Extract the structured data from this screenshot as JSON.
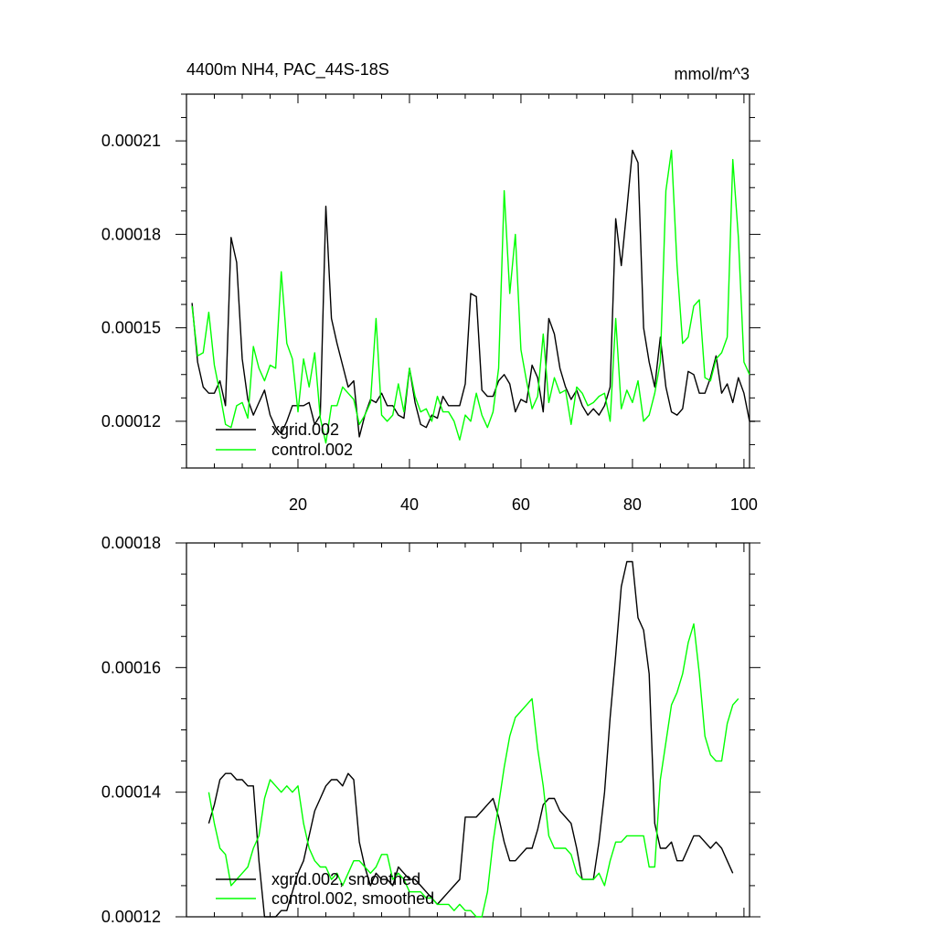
{
  "title_left": "4400m NH4, PAC_44S-18S",
  "title_right": "mmol/m^3",
  "colors": {
    "xgrid": "#000000",
    "control": "#00ff00",
    "axis": "#000000",
    "background": "#ffffff"
  },
  "chart_data": [
    {
      "type": "line",
      "title": "4400m NH4, PAC_44S-18S",
      "units": "mmol/m^3",
      "xlim": [
        0,
        101
      ],
      "ylim": [
        0.000105,
        0.000225
      ],
      "x_ticks": [
        20,
        40,
        60,
        80,
        100
      ],
      "x_tick_labels": [
        "20",
        "40",
        "60",
        "80",
        "100"
      ],
      "y_ticks": [
        0.00012,
        0.00015,
        0.00018,
        0.00021
      ],
      "y_tick_labels": [
        "0.00012",
        "0.00015",
        "0.00018",
        "0.00021"
      ],
      "legend": "bottom-left",
      "x_start": 1,
      "series": [
        {
          "name": "xgrid.002",
          "color": "#000000",
          "values": [
            0.000158,
            0.000139,
            0.000131,
            0.000129,
            0.000129,
            0.000133,
            0.000125,
            0.000179,
            0.000171,
            0.00014,
            0.000127,
            0.000122,
            0.000126,
            0.00013,
            0.000122,
            0.000118,
            0.000116,
            0.00012,
            0.000125,
            0.000125,
            0.000125,
            0.000126,
            0.000119,
            0.000122,
            0.000189,
            0.000153,
            0.000145,
            0.000138,
            0.000131,
            0.000133,
            0.000115,
            0.000122,
            0.000127,
            0.000126,
            0.000129,
            0.000125,
            0.000125,
            0.000122,
            0.000121,
            0.000137,
            0.000126,
            0.000119,
            0.000118,
            0.000122,
            0.000121,
            0.000128,
            0.000125,
            0.000125,
            0.000125,
            0.000132,
            0.000161,
            0.00016,
            0.00013,
            0.000128,
            0.000128,
            0.000133,
            0.000135,
            0.000132,
            0.000123,
            0.000127,
            0.000126,
            0.000138,
            0.000134,
            0.000123,
            0.000153,
            0.000148,
            0.000137,
            0.000131,
            0.000127,
            0.00013,
            0.000125,
            0.000122,
            0.000124,
            0.000122,
            0.000125,
            0.000131,
            0.000185,
            0.00017,
            0.000188,
            0.000207,
            0.000203,
            0.00015,
            0.000139,
            0.000131,
            0.000147,
            0.000131,
            0.000123,
            0.000122,
            0.000124,
            0.000136,
            0.000135,
            0.000129,
            0.000129,
            0.000134,
            0.000141,
            0.000129,
            0.000132,
            0.000126,
            0.000134,
            0.000129,
            0.00012,
            0.00012
          ]
        },
        {
          "name": "control.002",
          "color": "#00ff00",
          "values": [
            0.000157,
            0.000141,
            0.000142,
            0.000155,
            0.000138,
            0.000129,
            0.000119,
            0.000118,
            0.000125,
            0.000126,
            0.000121,
            0.000144,
            0.000137,
            0.000133,
            0.000138,
            0.000137,
            0.000168,
            0.000145,
            0.00014,
            0.000123,
            0.00014,
            0.000131,
            0.000142,
            0.000121,
            0.000113,
            0.000125,
            0.000125,
            0.000131,
            0.000129,
            0.000127,
            0.000119,
            0.000122,
            0.000126,
            0.000153,
            0.000122,
            0.00012,
            0.000122,
            0.000132,
            0.000123,
            0.000137,
            0.000128,
            0.000123,
            0.000124,
            0.00012,
            0.000128,
            0.000123,
            0.000123,
            0.00012,
            0.000114,
            0.000122,
            0.00012,
            0.000129,
            0.000122,
            0.000118,
            0.000123,
            0.000137,
            0.000194,
            0.000161,
            0.00018,
            0.000143,
            0.000133,
            0.000124,
            0.000128,
            0.000148,
            0.000126,
            0.000134,
            0.000129,
            0.00013,
            0.000119,
            0.000131,
            0.000129,
            0.000125,
            0.000126,
            0.000128,
            0.000129,
            0.00012,
            0.000153,
            0.000124,
            0.00013,
            0.000126,
            0.000133,
            0.00012,
            0.000122,
            0.000129,
            0.000139,
            0.000194,
            0.000207,
            0.00017,
            0.000145,
            0.000147,
            0.000157,
            0.000159,
            0.000134,
            0.000133,
            0.00014,
            0.000142,
            0.000147,
            0.000204,
            0.000179,
            0.000139,
            0.000135
          ]
        }
      ]
    },
    {
      "type": "line",
      "xlim": [
        0,
        101
      ],
      "ylim": [
        0.00012,
        0.00018
      ],
      "x_ticks": [
        20,
        40,
        60,
        80,
        100
      ],
      "x_tick_labels": [],
      "y_ticks": [
        0.00012,
        0.00014,
        0.00016,
        0.00018
      ],
      "y_tick_labels": [
        "0.00012",
        "0.00014",
        "0.00016",
        "0.00018"
      ],
      "legend": "bottom-left",
      "x_start": 4,
      "series": [
        {
          "name": "xgrid.002, smoothed",
          "color": "#000000",
          "values": [
            0.000135,
            0.000138,
            0.000142,
            0.000143,
            0.000143,
            0.000142,
            0.000142,
            0.000141,
            0.000141,
            0.000129,
            0.00012,
            0.00012,
            0.00012,
            0.000121,
            0.000121,
            0.000124,
            0.000127,
            0.000129,
            0.000133,
            0.000137,
            0.000139,
            0.000141,
            0.000142,
            0.000142,
            0.000141,
            0.000143,
            0.000142,
            0.000132,
            0.000128,
            0.000125,
            0.000127,
            0.000126,
            0.000126,
            0.000125,
            0.000128,
            0.000127,
            0.000126,
            0.000126,
            0.000125,
            0.000124,
            0.000123,
            0.000122,
            0.000123,
            0.000124,
            0.000125,
            0.000126,
            0.000136,
            0.000136,
            0.000136,
            0.000137,
            0.000138,
            0.000139,
            0.000136,
            0.000132,
            0.000129,
            0.000129,
            0.00013,
            0.000131,
            0.000131,
            0.000134,
            0.000138,
            0.000139,
            0.000139,
            0.000137,
            0.000136,
            0.000135,
            0.000131,
            0.000126,
            0.000126,
            0.000126,
            0.000132,
            0.00014,
            0.000152,
            0.000162,
            0.000173,
            0.000177,
            0.000177,
            0.000168,
            0.000166,
            0.000159,
            0.000135,
            0.000131,
            0.000131,
            0.000132,
            0.000129,
            0.000129,
            0.000131,
            0.000133,
            0.000133,
            0.000132,
            0.000131,
            0.000132,
            0.000131,
            0.000129,
            0.000127
          ]
        },
        {
          "name": "control.002, smoothed",
          "color": "#00ff00",
          "values": [
            0.00014,
            0.000135,
            0.000131,
            0.00013,
            0.000125,
            0.000126,
            0.000127,
            0.000128,
            0.000131,
            0.000133,
            0.000139,
            0.000142,
            0.000141,
            0.00014,
            0.000141,
            0.00014,
            0.000141,
            0.000135,
            0.000131,
            0.000129,
            0.000128,
            0.000128,
            0.000126,
            0.000127,
            0.000125,
            0.000127,
            0.000129,
            0.000129,
            0.000128,
            0.000127,
            0.000128,
            0.00013,
            0.00013,
            0.000126,
            0.000127,
            0.000126,
            0.000124,
            0.000124,
            0.000124,
            0.000123,
            0.000123,
            0.000122,
            0.000122,
            0.000122,
            0.000121,
            0.000122,
            0.000121,
            0.000121,
            0.00012,
            0.00012,
            0.000124,
            0.000132,
            0.000138,
            0.000144,
            0.000149,
            0.000152,
            0.000153,
            0.000154,
            0.000155,
            0.000147,
            0.000141,
            0.000133,
            0.000131,
            0.000131,
            0.000131,
            0.00013,
            0.000127,
            0.000126,
            0.000126,
            0.000126,
            0.000127,
            0.000125,
            0.000129,
            0.000132,
            0.000132,
            0.000133,
            0.000133,
            0.000133,
            0.000133,
            0.000128,
            0.000128,
            0.000142,
            0.000148,
            0.000154,
            0.000156,
            0.000159,
            0.000164,
            0.000167,
            0.000159,
            0.000149,
            0.000146,
            0.000145,
            0.000145,
            0.000151,
            0.000154,
            0.000155
          ]
        }
      ]
    }
  ]
}
